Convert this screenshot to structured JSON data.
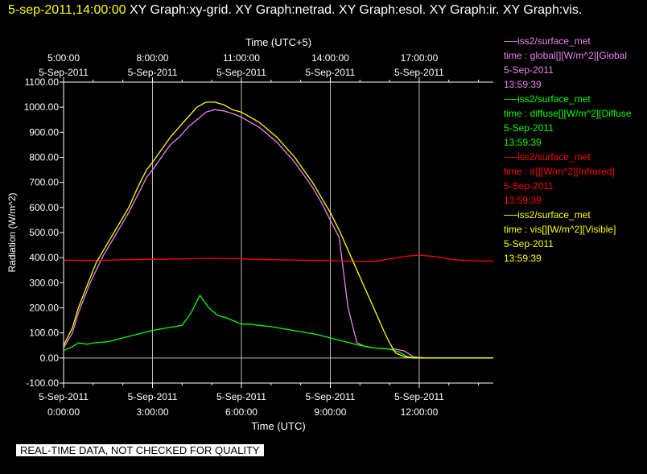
{
  "title": {
    "timestamp": "5-sep-2011,14:00:00",
    "text": "XY Graph:xy-grid.  XY Graph:netrad.  XY Graph:esol.  XY Graph:ir.  XY Graph:vis."
  },
  "footer": "REAL-TIME DATA, NOT CHECKED FOR QUALITY",
  "legend": [
    {
      "line1": "iss2/surface_met",
      "line2": "time : global[][W/m^2][Global",
      "line3": "5-Sep-2011",
      "line4": "13:59:39",
      "color": "#ee82ee"
    },
    {
      "line1": "iss2/surface_met",
      "line2": "time : diffuse[][W/m^2][Diffuse",
      "line3": "5-Sep-2011",
      "line4": "13:59:39",
      "color": "#00ff00"
    },
    {
      "line1": "iss2/surface_met",
      "line2": "time : ir[][W/m^2][Infrared]",
      "line3": "5-Sep-2011",
      "line4": "13:59:39",
      "color": "#ff0000"
    },
    {
      "line1": "iss2/surface_met",
      "line2": "time : vis[][W/m^2][Visible]",
      "line3": "5-Sep-2011",
      "line4": "13:59:39",
      "color": "#ffff00"
    }
  ],
  "chart_data": {
    "type": "line",
    "xlabel": "Time (UTC)",
    "x2label": "Time (UTC+5)",
    "ylabel": "Radiation (W/m^2)",
    "ylim": [
      -100,
      1100
    ],
    "xlim_hours_utc": [
      0,
      14.5
    ],
    "yticks": [
      "-100.00",
      "0.00",
      "100.00",
      "200.00",
      "300.00",
      "400.00",
      "500.00",
      "600.00",
      "700.00",
      "800.00",
      "900.00",
      "1000.00",
      "1100.00"
    ],
    "xticks_bottom": [
      {
        "hour": 0,
        "date": "5-Sep-2011",
        "time": "0:00:00"
      },
      {
        "hour": 3,
        "date": "5-Sep-2011",
        "time": "3:00:00"
      },
      {
        "hour": 6,
        "date": "5-Sep-2011",
        "time": "6:00:00"
      },
      {
        "hour": 9,
        "date": "5-Sep-2011",
        "time": "9:00:00"
      },
      {
        "hour": 12,
        "date": "5-Sep-2011",
        "time": "12:00:00"
      }
    ],
    "xticks_top": [
      {
        "hour": 0,
        "date": "5-Sep-2011",
        "time": "5:00:00"
      },
      {
        "hour": 3,
        "date": "5-Sep-2011",
        "time": "8:00:00"
      },
      {
        "hour": 6,
        "date": "5-Sep-2011",
        "time": "11:00:00"
      },
      {
        "hour": 9,
        "date": "5-Sep-2011",
        "time": "14:00:00"
      },
      {
        "hour": 12,
        "date": "5-Sep-2011",
        "time": "17:00:00"
      }
    ],
    "grid": true,
    "series": [
      {
        "name": "global",
        "color": "#ee82ee",
        "x": [
          0,
          0.3,
          0.5,
          0.7,
          0.9,
          1.1,
          1.3,
          1.6,
          1.9,
          2.2,
          2.5,
          2.8,
          3.0,
          3.3,
          3.6,
          3.9,
          4.2,
          4.5,
          4.8,
          5.1,
          5.4,
          5.7,
          6.0,
          6.3,
          6.6,
          6.9,
          7.2,
          7.5,
          7.8,
          8.1,
          8.4,
          8.7,
          9.0,
          9.3,
          9.6,
          9.9,
          10.2,
          10.5,
          10.8,
          11.0,
          11.2,
          11.5,
          11.8,
          12.2,
          12.6,
          13.0,
          13.5,
          14.0,
          14.5
        ],
        "y": [
          40,
          100,
          180,
          240,
          300,
          350,
          400,
          460,
          520,
          580,
          650,
          720,
          750,
          800,
          850,
          880,
          920,
          950,
          980,
          990,
          985,
          975,
          960,
          940,
          920,
          890,
          860,
          820,
          780,
          730,
          680,
          620,
          550,
          480,
          200,
          60,
          45,
          40,
          38,
          35,
          35,
          28,
          5,
          0,
          0,
          0,
          0,
          0,
          0
        ]
      },
      {
        "name": "diffuse",
        "color": "#00ff00",
        "x": [
          0,
          0.3,
          0.5,
          0.8,
          1.0,
          1.5,
          2.0,
          2.5,
          3.0,
          3.5,
          4.0,
          4.3,
          4.6,
          4.9,
          5.2,
          5.5,
          5.8,
          6.0,
          6.3,
          6.6,
          7.0,
          7.5,
          8.0,
          8.5,
          9.0,
          9.5,
          10.0,
          10.5,
          11.0,
          11.3,
          11.6,
          12.0,
          13.0,
          14.0,
          14.5
        ],
        "y": [
          30,
          45,
          60,
          55,
          60,
          65,
          80,
          95,
          110,
          120,
          130,
          180,
          250,
          200,
          170,
          160,
          145,
          135,
          135,
          130,
          125,
          115,
          105,
          95,
          80,
          65,
          50,
          40,
          35,
          25,
          5,
          0,
          0,
          0,
          0
        ]
      },
      {
        "name": "ir",
        "color": "#ff0000",
        "x": [
          0,
          1,
          2,
          3,
          4,
          5,
          6,
          7,
          8,
          9,
          10,
          10.5,
          11.0,
          11.5,
          12.0,
          12.5,
          13.0,
          13.5,
          14.0,
          14.5
        ],
        "y": [
          390,
          388,
          392,
          393,
          395,
          398,
          395,
          392,
          390,
          388,
          385,
          385,
          395,
          405,
          410,
          405,
          395,
          388,
          387,
          387
        ]
      },
      {
        "name": "vis",
        "color": "#ffff00",
        "x": [
          0,
          0.3,
          0.5,
          0.7,
          0.9,
          1.1,
          1.3,
          1.6,
          1.9,
          2.2,
          2.5,
          2.8,
          3.0,
          3.3,
          3.6,
          3.9,
          4.2,
          4.5,
          4.8,
          5.1,
          5.4,
          5.7,
          6.0,
          6.3,
          6.6,
          6.9,
          7.2,
          7.5,
          7.8,
          8.1,
          8.4,
          8.7,
          9.0,
          9.3,
          9.6,
          9.9,
          10.2,
          10.5,
          10.8,
          11.0,
          11.2,
          11.5,
          11.8,
          12.2,
          12.6,
          13.0,
          13.5,
          14.0,
          14.5
        ],
        "y": [
          50,
          120,
          200,
          260,
          320,
          380,
          420,
          480,
          540,
          600,
          680,
          750,
          780,
          830,
          880,
          920,
          960,
          1000,
          1020,
          1020,
          1010,
          990,
          980,
          960,
          940,
          910,
          880,
          840,
          800,
          750,
          700,
          640,
          580,
          510,
          430,
          350,
          270,
          190,
          110,
          60,
          20,
          5,
          0,
          0,
          0,
          0,
          0,
          0,
          0
        ]
      }
    ]
  }
}
